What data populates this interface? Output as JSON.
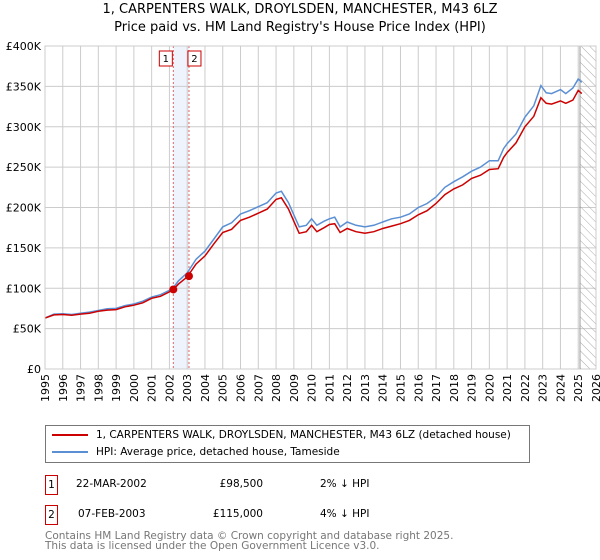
{
  "title": "1, CARPENTERS WALK, DROYLSDEN, MANCHESTER, M43 6LZ",
  "subtitle": "Price paid vs. HM Land Registry's House Price Index (HPI)",
  "chart_data": {
    "type": "line",
    "title": "1, CARPENTERS WALK, DROYLSDEN, MANCHESTER, M43 6LZ",
    "subtitle": "Price paid vs. HM Land Registry's House Price Index (HPI)",
    "xlim": [
      1995,
      2026
    ],
    "ylim": [
      0,
      400000
    ],
    "x_ticks": [
      "1995",
      "1996",
      "1997",
      "1998",
      "1999",
      "2000",
      "2001",
      "2002",
      "2003",
      "2004",
      "2005",
      "2006",
      "2007",
      "2008",
      "2009",
      "2010",
      "2011",
      "2012",
      "2013",
      "2014",
      "2015",
      "2016",
      "2017",
      "2018",
      "2019",
      "2020",
      "2021",
      "2022",
      "2023",
      "2024",
      "2025",
      "2026"
    ],
    "y_ticks": [
      {
        "v": 0,
        "label": "£0"
      },
      {
        "v": 50000,
        "label": "£50K"
      },
      {
        "v": 100000,
        "label": "£100K"
      },
      {
        "v": 150000,
        "label": "£150K"
      },
      {
        "v": 200000,
        "label": "£200K"
      },
      {
        "v": 250000,
        "label": "£250K"
      },
      {
        "v": 300000,
        "label": "£300K"
      },
      {
        "v": 350000,
        "label": "£350K"
      },
      {
        "v": 400000,
        "label": "£400K"
      }
    ],
    "grid": true,
    "forecast_hatch_from": 2025.1,
    "x": [
      1995.0,
      1995.5,
      1996,
      1996.5,
      1997,
      1997.5,
      1998,
      1998.5,
      1999,
      1999.5,
      2000,
      2000.5,
      2001,
      2001.5,
      2002,
      2002.22,
      2002.5,
      2003,
      2003.5,
      2004,
      2004.5,
      2005,
      2005.5,
      2006,
      2006.5,
      2007,
      2007.5,
      2008,
      2008.3,
      2008.7,
      2009,
      2009.3,
      2009.7,
      2010,
      2010.3,
      2010.7,
      2011,
      2011.3,
      2011.6,
      2012,
      2012.5,
      2013,
      2013.5,
      2014,
      2014.5,
      2015,
      2015.5,
      2016,
      2016.5,
      2017,
      2017.5,
      2018,
      2018.5,
      2019,
      2019.5,
      2020,
      2020.5,
      2020.8,
      2021,
      2021.5,
      2022,
      2022.5,
      2022.9,
      2023.2,
      2023.5,
      2024,
      2024.3,
      2024.7,
      2025,
      2025.2
    ],
    "series": [
      {
        "name": "1, CARPENTERS WALK, DROYLSDEN, MANCHESTER, M43 6LZ (detached house)",
        "color": "#cc0000",
        "values": [
          63000,
          67000,
          67500,
          66500,
          68000,
          69000,
          71500,
          73000,
          73500,
          77000,
          79000,
          82000,
          87500,
          90000,
          95500,
          98500,
          105000,
          114000,
          130000,
          140000,
          155000,
          169000,
          173000,
          184000,
          188000,
          193000,
          198000,
          210000,
          212000,
          198000,
          183000,
          168000,
          170000,
          178000,
          170000,
          175000,
          179000,
          180000,
          169000,
          174000,
          170000,
          168000,
          170000,
          174000,
          177000,
          180000,
          184000,
          191000,
          196000,
          205000,
          216000,
          223000,
          228000,
          236000,
          240000,
          247000,
          248000,
          262000,
          268000,
          280000,
          300000,
          313000,
          336000,
          329000,
          328000,
          332000,
          329000,
          333000,
          345000,
          341000
        ]
      },
      {
        "name": "HPI: Average price, detached house, Tameside",
        "color": "#5b8fd4",
        "values": [
          63000,
          68000,
          68500,
          67500,
          69000,
          70500,
          72500,
          74500,
          75000,
          78500,
          80500,
          84000,
          89000,
          92000,
          97500,
          100500,
          109000,
          119000,
          136000,
          146000,
          161000,
          176000,
          181000,
          192000,
          196000,
          201000,
          206000,
          218000,
          220000,
          206000,
          191000,
          176000,
          178000,
          186000,
          178000,
          183000,
          186000,
          188000,
          176000,
          182000,
          178000,
          176000,
          178000,
          182000,
          186000,
          188000,
          192000,
          200000,
          205000,
          213000,
          225000,
          232000,
          238000,
          245000,
          250000,
          258000,
          258000,
          273000,
          279000,
          291000,
          312000,
          326000,
          351000,
          342000,
          341000,
          346000,
          341000,
          348000,
          359000,
          355000
        ]
      }
    ],
    "sales": [
      {
        "label": "1",
        "x": 2002.22,
        "value": 98500
      },
      {
        "label": "2",
        "x": 2003.1,
        "value": 115000
      }
    ]
  },
  "legend": {
    "property": "1, CARPENTERS WALK, DROYLSDEN, MANCHESTER, M43 6LZ (detached house)",
    "hpi": "HPI: Average price, detached house, Tameside"
  },
  "transactions": [
    {
      "num": "1",
      "date": "22-MAR-2002",
      "price": "£98,500",
      "hpi": "2% ↓ HPI"
    },
    {
      "num": "2",
      "date": "07-FEB-2003",
      "price": "£115,000",
      "hpi": "4% ↓ HPI"
    }
  ],
  "footer": {
    "line1": "Contains HM Land Registry data © Crown copyright and database right 2025.",
    "line2": "This data is licensed under the Open Government Licence v3.0."
  }
}
